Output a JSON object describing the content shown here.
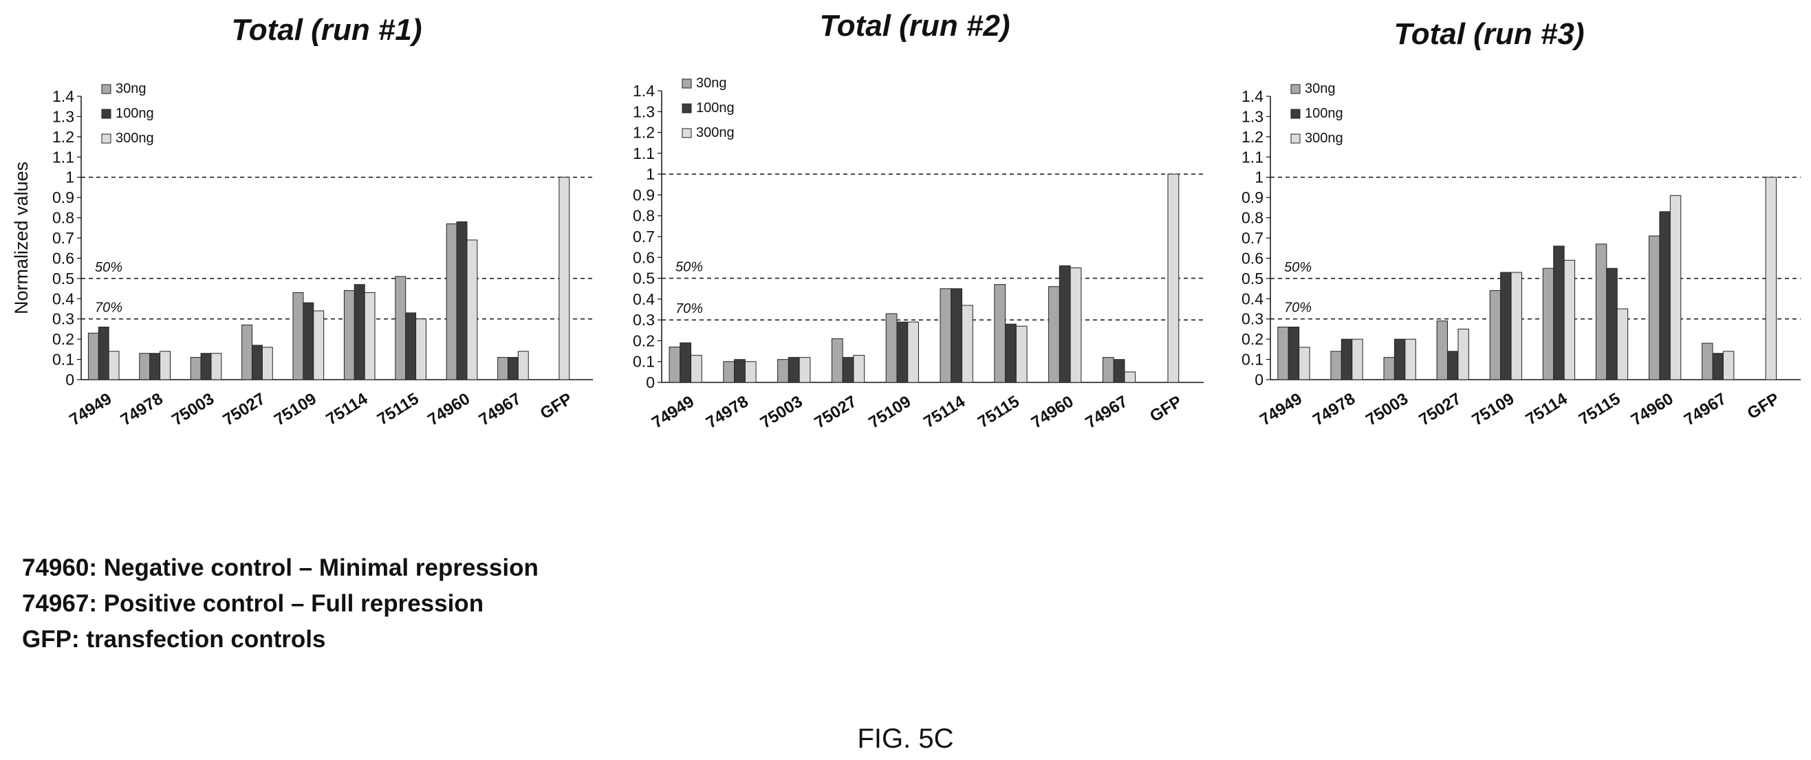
{
  "chart_data": [
    {
      "type": "bar",
      "title": "Total (run #1)",
      "ylabel": "Normalized values",
      "ylim": [
        0,
        1.4
      ],
      "yticks": [
        "0",
        "0.1",
        "0.2",
        "0.3",
        "0.4",
        "0.5",
        "0.6",
        "0.7",
        "0.8",
        "0.9",
        "1",
        "1.1",
        "1.2",
        "1.3",
        "1.4"
      ],
      "categories": [
        "74949",
        "74978",
        "75003",
        "75027",
        "75109",
        "75114",
        "75115",
        "74960",
        "74967",
        "GFP"
      ],
      "series": [
        {
          "name": "30ng",
          "color": "#a8a8a8",
          "values": [
            0.23,
            0.13,
            0.11,
            0.27,
            0.43,
            0.44,
            0.51,
            0.77,
            0.11,
            null
          ]
        },
        {
          "name": "100ng",
          "color": "#3c3c3c",
          "values": [
            0.26,
            0.13,
            0.13,
            0.17,
            0.38,
            0.47,
            0.33,
            0.78,
            0.11,
            null
          ]
        },
        {
          "name": "300ng",
          "color": "#dcdcdc",
          "values": [
            0.14,
            0.14,
            0.13,
            0.16,
            0.34,
            0.43,
            0.3,
            0.69,
            0.14,
            1.0
          ]
        }
      ],
      "reference_lines": [
        {
          "value": 1.0,
          "label": ""
        },
        {
          "value": 0.5,
          "label": "50%"
        },
        {
          "value": 0.3,
          "label": "70%"
        }
      ],
      "legend": "top-left",
      "grid": false
    },
    {
      "type": "bar",
      "title": "Total (run #2)",
      "ylabel": "",
      "ylim": [
        0,
        1.4
      ],
      "yticks": [
        "0",
        "0.1",
        "0.2",
        "0.3",
        "0.4",
        "0.5",
        "0.6",
        "0.7",
        "0.8",
        "0.9",
        "1",
        "1.1",
        "1.2",
        "1.3",
        "1.4"
      ],
      "categories": [
        "74949",
        "74978",
        "75003",
        "75027",
        "75109",
        "75114",
        "75115",
        "74960",
        "74967",
        "GFP"
      ],
      "series": [
        {
          "name": "30ng",
          "color": "#a8a8a8",
          "values": [
            0.17,
            0.1,
            0.11,
            0.21,
            0.33,
            0.45,
            0.47,
            0.46,
            0.12,
            null
          ]
        },
        {
          "name": "100ng",
          "color": "#3c3c3c",
          "values": [
            0.19,
            0.11,
            0.12,
            0.12,
            0.29,
            0.45,
            0.28,
            0.56,
            0.11,
            null
          ]
        },
        {
          "name": "300ng",
          "color": "#dcdcdc",
          "values": [
            0.13,
            0.1,
            0.12,
            0.13,
            0.29,
            0.37,
            0.27,
            0.55,
            0.05,
            1.0
          ]
        }
      ],
      "reference_lines": [
        {
          "value": 1.0,
          "label": ""
        },
        {
          "value": 0.5,
          "label": "50%"
        },
        {
          "value": 0.3,
          "label": "70%"
        }
      ],
      "legend": "top-left",
      "grid": false
    },
    {
      "type": "bar",
      "title": "Total (run #3)",
      "ylabel": "",
      "ylim": [
        0,
        1.4
      ],
      "yticks": [
        "0",
        "0.1",
        "0.2",
        "0.3",
        "0.4",
        "0.5",
        "0.6",
        "0.7",
        "0.8",
        "0.9",
        "1",
        "1.1",
        "1.2",
        "1.3",
        "1.4"
      ],
      "categories": [
        "74949",
        "74978",
        "75003",
        "75027",
        "75109",
        "75114",
        "75115",
        "74960",
        "74967",
        "GFP"
      ],
      "series": [
        {
          "name": "30ng",
          "color": "#a8a8a8",
          "values": [
            0.26,
            0.14,
            0.11,
            0.29,
            0.44,
            0.55,
            0.67,
            0.71,
            0.18,
            null
          ]
        },
        {
          "name": "100ng",
          "color": "#3c3c3c",
          "values": [
            0.26,
            0.2,
            0.2,
            0.14,
            0.53,
            0.66,
            0.55,
            0.83,
            0.13,
            null
          ]
        },
        {
          "name": "300ng",
          "color": "#dcdcdc",
          "values": [
            0.16,
            0.2,
            0.2,
            0.25,
            0.53,
            0.59,
            0.35,
            0.91,
            0.14,
            1.0
          ]
        }
      ],
      "reference_lines": [
        {
          "value": 1.0,
          "label": ""
        },
        {
          "value": 0.5,
          "label": "50%"
        },
        {
          "value": 0.3,
          "label": "70%"
        }
      ],
      "legend": "top-left",
      "grid": false
    }
  ],
  "notes": [
    "74960: Negative control – Minimal repression",
    "74967: Positive control – Full repression",
    "GFP: transfection controls"
  ],
  "figure_label": "FIG. 5C"
}
